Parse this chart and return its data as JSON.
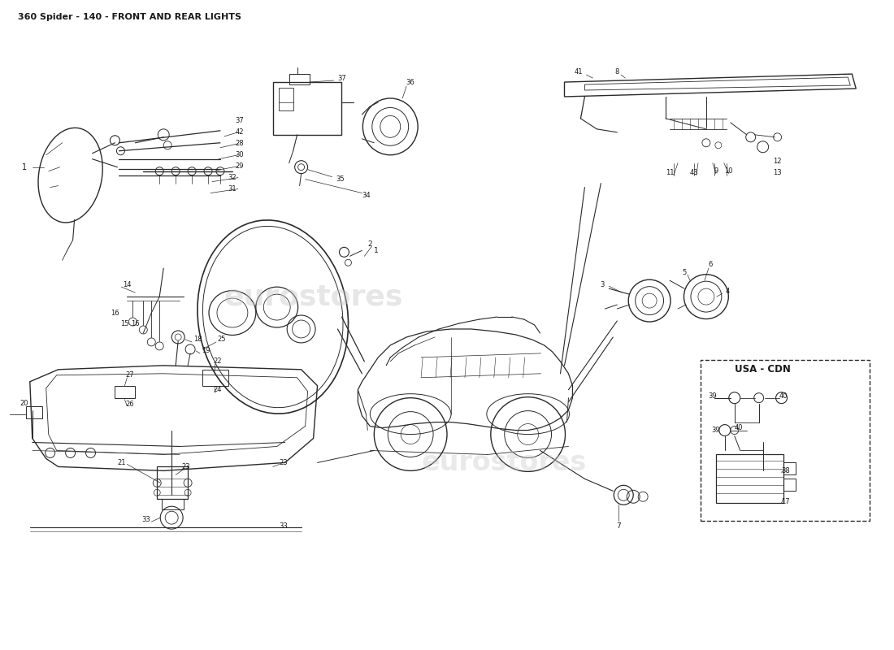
{
  "title": "360 Spider - 140 - FRONT AND REAR LIGHTS",
  "title_fontsize": 8,
  "bg_color": "#ffffff",
  "line_color": "#2a2a2a",
  "text_color": "#1a1a1a",
  "usa_cdn_label": "USA - CDN",
  "fig_width": 11.0,
  "fig_height": 8.0,
  "dpi": 100
}
